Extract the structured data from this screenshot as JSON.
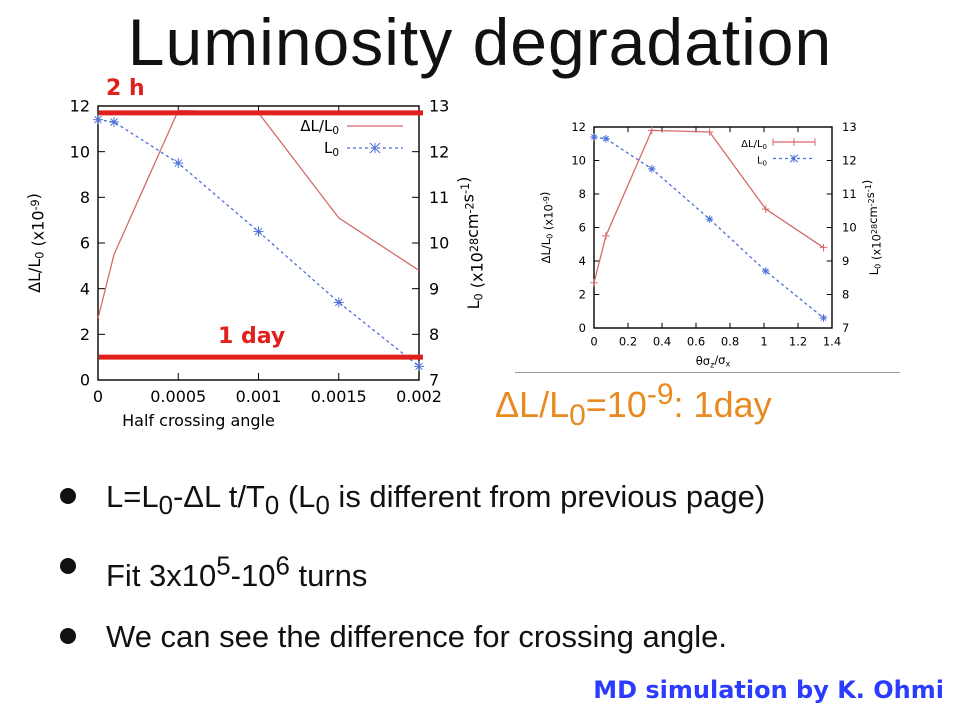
{
  "slide": {
    "title": "Luminosity degradation",
    "note_html": "ΔL/L<sub>0</sub>=10<sup>-9</sup>: 1day",
    "bullets": [
      "L=L<sub>0</sub>-ΔL t/T<sub>0</sub> (L<sub>0</sub> is different from previous page)",
      "Fit 3x10<sup>5</sup>-10<sup>6</sup> turns",
      "We can see the difference for crossing angle."
    ],
    "credit": "MD simulation by K. Ohmi",
    "annotations": {
      "top_line_label": "2 h",
      "bottom_line_label": "1 day"
    }
  },
  "chart_data": [
    {
      "type": "line",
      "xlabel": "Half crossing angle",
      "ylabel_left": "ΔL/L0 (x10-9)",
      "ylabel_right": "L0 (x1028cm-2s-1)",
      "xlim": [
        0,
        0.002
      ],
      "ylim_left": [
        0,
        12
      ],
      "ylim_right": [
        7,
        13
      ],
      "x_ticks": [
        "0",
        "0.0005",
        "0.001",
        "0.0015",
        "0.002"
      ],
      "y_left_ticks": [
        "0",
        "2",
        "4",
        "6",
        "8",
        "10",
        "12"
      ],
      "y_right_ticks": [
        "7",
        "8",
        "9",
        "10",
        "11",
        "12",
        "13"
      ],
      "legend": {
        "position": "top-right",
        "entries": [
          "ΔL/L0",
          "L0"
        ]
      },
      "series": [
        {
          "name": "ΔL/L0",
          "axis": "left",
          "color": "#d66a6a",
          "style": "solid",
          "marker": "none",
          "x": [
            0,
            0.0001,
            0.0005,
            0.001,
            0.0015,
            0.002
          ],
          "y": [
            2.7,
            5.5,
            11.8,
            11.7,
            7.1,
            4.8
          ]
        },
        {
          "name": "L0",
          "axis": "right",
          "color": "#4a6fd8",
          "style": "dashed",
          "marker": "asterisk",
          "x": [
            0,
            0.0001,
            0.0005,
            0.001,
            0.0015,
            0.002
          ],
          "y": [
            12.7,
            12.65,
            11.75,
            10.25,
            8.7,
            7.3
          ]
        }
      ],
      "reference_lines": [
        {
          "label": "2 h",
          "axis": "left",
          "y": 11.7,
          "color": "#e0201c"
        },
        {
          "label": "1 day",
          "axis": "left",
          "y": 1.0,
          "color": "#e0201c"
        }
      ]
    },
    {
      "type": "line",
      "xlabel": "θσz/σx",
      "ylabel_left": "ΔL/L0 (x10-9)",
      "ylabel_right": "L0 (x1028cm-2s-1)",
      "xlim": [
        0,
        1.4
      ],
      "ylim_left": [
        0,
        12
      ],
      "ylim_right": [
        7,
        13
      ],
      "x_ticks": [
        "0",
        "0.2",
        "0.4",
        "0.6",
        "0.8",
        "1",
        "1.2",
        "1.4"
      ],
      "y_left_ticks": [
        "0",
        "2",
        "4",
        "6",
        "8",
        "10",
        "12"
      ],
      "y_right_ticks": [
        "7",
        "8",
        "9",
        "10",
        "11",
        "12",
        "13"
      ],
      "legend": {
        "position": "top-right",
        "entries": [
          "ΔL/L0",
          "L0"
        ]
      },
      "series": [
        {
          "name": "ΔL/L0",
          "axis": "left",
          "color": "#d66a6a",
          "style": "solid",
          "marker": "plus",
          "x": [
            0,
            0.07,
            0.34,
            0.68,
            1.01,
            1.35
          ],
          "y": [
            2.7,
            5.5,
            11.8,
            11.7,
            7.1,
            4.8
          ]
        },
        {
          "name": "L0",
          "axis": "right",
          "color": "#4a6fd8",
          "style": "dashed",
          "marker": "asterisk",
          "x": [
            0,
            0.07,
            0.34,
            0.68,
            1.01,
            1.35
          ],
          "y": [
            12.7,
            12.65,
            11.75,
            10.25,
            8.7,
            7.3
          ]
        }
      ]
    }
  ]
}
